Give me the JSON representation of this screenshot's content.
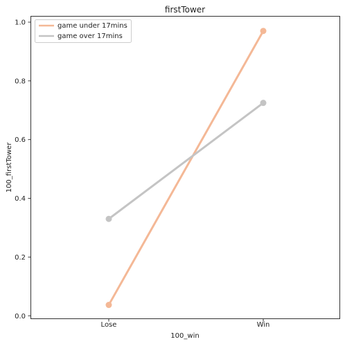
{
  "chart_data": {
    "type": "line",
    "title": "firstTower",
    "xlabel": "100_win",
    "ylabel": "100_firstTower",
    "categories": [
      "Lose",
      "Win"
    ],
    "ylim": [
      -0.01,
      1.02
    ],
    "yticks": [
      "0.0",
      "0.2",
      "0.4",
      "0.6",
      "0.8",
      "1.0"
    ],
    "grid": false,
    "legend_position": "top-left",
    "series": [
      {
        "name": "game under 17mins",
        "color": "#f4b896",
        "values": [
          0.037,
          0.97
        ]
      },
      {
        "name": "game over 17mins",
        "color": "#c4c4c4",
        "values": [
          0.33,
          0.725
        ]
      }
    ]
  }
}
